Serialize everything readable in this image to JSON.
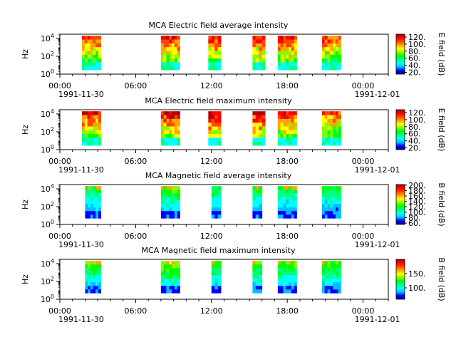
{
  "figure": {
    "time_axis": {
      "tick_labels": [
        "00:00",
        "06:00",
        "12:00",
        "18:00",
        "00:00"
      ],
      "start_date": "1991-11-30",
      "end_date": "1991-12-01",
      "range": [
        "1991-11-30T00:00",
        "1991-12-01T02:00"
      ]
    },
    "freq_axis": {
      "label": "Hz",
      "tick_labels": [
        "10^0",
        "10^2",
        "10^4"
      ],
      "scale": "log",
      "range": [
        1,
        30000
      ]
    },
    "colormap": [
      "#00008b",
      "#0000ff",
      "#00bfff",
      "#00ffff",
      "#00ff80",
      "#00ff00",
      "#80ff00",
      "#ffff00",
      "#ffa500",
      "#ff4500",
      "#ff0000",
      "#b00000"
    ]
  },
  "chart_data": [
    {
      "type": "heatmap",
      "title": "MCA  Electric field average intensity",
      "ylabel": "Hz",
      "colorbar": {
        "label": "E field (dB)",
        "ticks": [
          "20.",
          "40.",
          "60.",
          "80.",
          "100.",
          "120."
        ],
        "range": [
          15,
          128
        ]
      },
      "data_blocks": [
        {
          "start": "01:45",
          "end": "03:15",
          "freq_range": [
            3,
            20000
          ],
          "level": 0.55
        },
        {
          "start": "08:00",
          "end": "09:30",
          "freq_range": [
            3,
            20000
          ],
          "level": 0.6
        },
        {
          "start": "11:45",
          "end": "12:45",
          "freq_range": [
            3,
            20000
          ],
          "level": 0.6
        },
        {
          "start": "15:15",
          "end": "16:15",
          "freq_range": [
            3,
            20000
          ],
          "level": 0.6
        },
        {
          "start": "17:15",
          "end": "18:45",
          "freq_range": [
            3,
            20000
          ],
          "level": 0.6
        },
        {
          "start": "20:45",
          "end": "22:15",
          "freq_range": [
            3,
            20000
          ],
          "level": 0.55
        }
      ]
    },
    {
      "type": "heatmap",
      "title": "MCA  Electric field maximum intensity",
      "ylabel": "Hz",
      "colorbar": {
        "label": "E field (dB)",
        "ticks": [
          "20.",
          "40.",
          "60.",
          "80.",
          "100.",
          "120."
        ],
        "range": [
          15,
          128
        ]
      },
      "data_blocks": [
        {
          "start": "01:45",
          "end": "03:15",
          "freq_range": [
            3,
            20000
          ],
          "level": 0.6
        },
        {
          "start": "08:00",
          "end": "09:30",
          "freq_range": [
            3,
            20000
          ],
          "level": 0.65
        },
        {
          "start": "11:45",
          "end": "12:45",
          "freq_range": [
            3,
            20000
          ],
          "level": 0.65
        },
        {
          "start": "15:15",
          "end": "16:15",
          "freq_range": [
            3,
            20000
          ],
          "level": 0.65
        },
        {
          "start": "17:15",
          "end": "18:45",
          "freq_range": [
            3,
            20000
          ],
          "level": 0.6
        },
        {
          "start": "20:45",
          "end": "22:15",
          "freq_range": [
            3,
            20000
          ],
          "level": 0.55
        }
      ]
    },
    {
      "type": "heatmap",
      "title": "MCA  Magnetic field average intensity",
      "ylabel": "Hz",
      "colorbar": {
        "label": "B field (dB)",
        "ticks": [
          "60.",
          "80.",
          "100.",
          "120.",
          "140.",
          "160.",
          "180.",
          "200."
        ],
        "range": [
          55,
          202
        ]
      },
      "data_blocks": [
        {
          "start": "02:00",
          "end": "03:15",
          "freq_range": [
            5,
            20000
          ],
          "level": 0.4
        },
        {
          "start": "08:00",
          "end": "09:30",
          "freq_range": [
            5,
            20000
          ],
          "level": 0.45
        },
        {
          "start": "12:00",
          "end": "12:45",
          "freq_range": [
            5,
            20000
          ],
          "level": 0.4
        },
        {
          "start": "15:15",
          "end": "16:00",
          "freq_range": [
            5,
            20000
          ],
          "level": 0.4
        },
        {
          "start": "17:15",
          "end": "18:45",
          "freq_range": [
            5,
            20000
          ],
          "level": 0.4
        },
        {
          "start": "20:45",
          "end": "22:15",
          "freq_range": [
            5,
            20000
          ],
          "level": 0.4
        }
      ]
    },
    {
      "type": "heatmap",
      "title": "MCA  Magnetic field maximum intensity",
      "ylabel": "Hz",
      "colorbar": {
        "label": "B field (dB)",
        "ticks": [
          "100.",
          "150."
        ],
        "range": [
          60,
          200
        ]
      },
      "data_blocks": [
        {
          "start": "02:00",
          "end": "03:15",
          "freq_range": [
            5,
            20000
          ],
          "level": 0.45
        },
        {
          "start": "08:00",
          "end": "09:30",
          "freq_range": [
            5,
            20000
          ],
          "level": 0.5
        },
        {
          "start": "12:00",
          "end": "12:45",
          "freq_range": [
            5,
            20000
          ],
          "level": 0.45
        },
        {
          "start": "15:15",
          "end": "16:00",
          "freq_range": [
            5,
            20000
          ],
          "level": 0.45
        },
        {
          "start": "17:15",
          "end": "18:45",
          "freq_range": [
            5,
            20000
          ],
          "level": 0.45
        },
        {
          "start": "20:45",
          "end": "22:15",
          "freq_range": [
            5,
            20000
          ],
          "level": 0.45
        }
      ]
    }
  ]
}
